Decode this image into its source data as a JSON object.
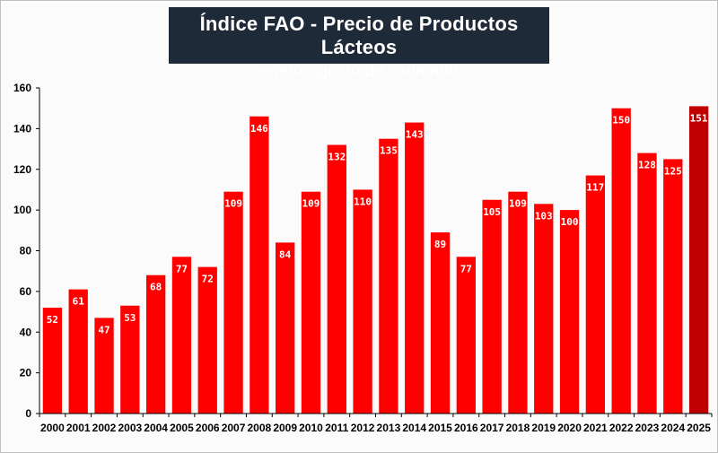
{
  "chart_data": {
    "type": "bar",
    "title": "Índice FAO - Precio de Productos  Lácteos",
    "subtitle": "- enero-agosto de cada año -",
    "xlabel": "",
    "ylabel": "",
    "ylim": [
      0,
      160
    ],
    "yticks": [
      0,
      20,
      40,
      60,
      80,
      100,
      120,
      140,
      160
    ],
    "grid": false,
    "legend": "none",
    "categories": [
      "2000",
      "2001",
      "2002",
      "2003",
      "2004",
      "2005",
      "2006",
      "2007",
      "2008",
      "2009",
      "2010",
      "2011",
      "2012",
      "2013",
      "2014",
      "2015",
      "2016",
      "2017",
      "2018",
      "2019",
      "2020",
      "2021",
      "2022",
      "2023",
      "2024",
      "2025"
    ],
    "values": [
      52,
      61,
      47,
      53,
      68,
      77,
      72,
      109,
      146,
      84,
      109,
      132,
      110,
      135,
      143,
      89,
      77,
      105,
      109,
      103,
      100,
      117,
      150,
      128,
      125,
      151
    ],
    "labels": [
      "52",
      "61",
      "47",
      "53",
      "68",
      "77",
      "72",
      "109",
      "146",
      "84",
      "109",
      "132",
      "110",
      "135",
      "143",
      "89",
      "77",
      "105",
      "109",
      "103",
      "100",
      "117",
      "150",
      "128",
      "125",
      "151"
    ],
    "bar_color": "#ff0000",
    "highlight_color": "#c00000",
    "highlight_index": 25
  }
}
